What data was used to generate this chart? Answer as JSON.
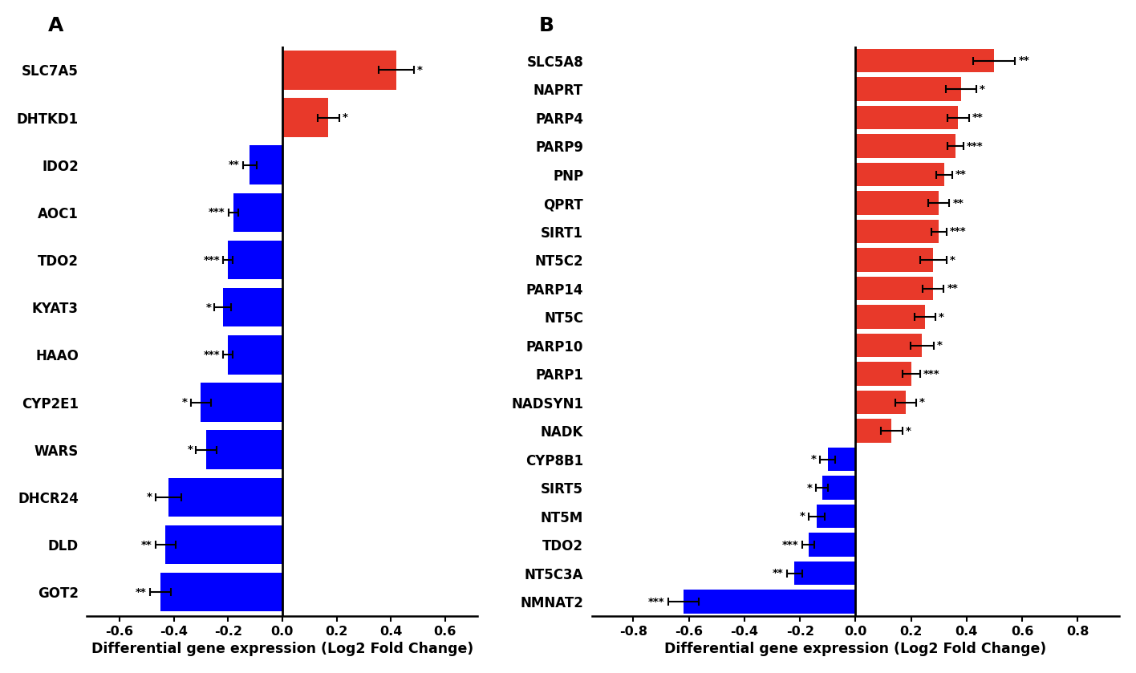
{
  "panel_A": {
    "genes": [
      "SLC7A5",
      "DHTKD1",
      "IDO2",
      "AOC1",
      "TDO2",
      "KYAT3",
      "HAAO",
      "CYP2E1",
      "WARS",
      "DHCR24",
      "DLD",
      "GOT2"
    ],
    "values": [
      0.42,
      0.17,
      -0.12,
      -0.18,
      -0.2,
      -0.22,
      -0.2,
      -0.3,
      -0.28,
      -0.42,
      -0.43,
      -0.45
    ],
    "errors": [
      0.065,
      0.04,
      0.025,
      0.018,
      0.018,
      0.03,
      0.018,
      0.038,
      0.038,
      0.048,
      0.038,
      0.038
    ],
    "colors": [
      "#e8392a",
      "#e8392a",
      "#0000ff",
      "#0000ff",
      "#0000ff",
      "#0000ff",
      "#0000ff",
      "#0000ff",
      "#0000ff",
      "#0000ff",
      "#0000ff",
      "#0000ff"
    ],
    "significance": [
      "*",
      "*",
      "**",
      "***",
      "***",
      "*",
      "***",
      "*",
      "*",
      "*",
      "**",
      "**"
    ],
    "xlim": [
      -0.72,
      0.72
    ],
    "xticks": [
      -0.6,
      -0.4,
      -0.2,
      0.0,
      0.2,
      0.4,
      0.6
    ],
    "xtick_labels": [
      "-0.6",
      "-0.4",
      "-0.2",
      "0.0",
      "0.2",
      "0.4",
      "0.6"
    ],
    "xlabel": "Differential gene expression (Log2 Fold Change)",
    "panel_label": "A"
  },
  "panel_B": {
    "genes": [
      "SLC5A8",
      "NAPRT",
      "PARP4",
      "PARP9",
      "PNP",
      "QPRT",
      "SIRT1",
      "NT5C2",
      "PARP14",
      "NT5C",
      "PARP10",
      "PARP1",
      "NADSYN1",
      "NADK",
      "CYP8B1",
      "SIRT5",
      "NT5M",
      "TDO2",
      "NT5C3A",
      "NMNAT2"
    ],
    "values": [
      0.5,
      0.38,
      0.37,
      0.36,
      0.32,
      0.3,
      0.3,
      0.28,
      0.28,
      0.25,
      0.24,
      0.2,
      0.18,
      0.13,
      -0.1,
      -0.12,
      -0.14,
      -0.17,
      -0.22,
      -0.62
    ],
    "errors": [
      0.075,
      0.055,
      0.038,
      0.028,
      0.028,
      0.038,
      0.028,
      0.048,
      0.038,
      0.038,
      0.042,
      0.032,
      0.038,
      0.038,
      0.028,
      0.022,
      0.028,
      0.022,
      0.028,
      0.055
    ],
    "colors": [
      "#e8392a",
      "#e8392a",
      "#e8392a",
      "#e8392a",
      "#e8392a",
      "#e8392a",
      "#e8392a",
      "#e8392a",
      "#e8392a",
      "#e8392a",
      "#e8392a",
      "#e8392a",
      "#e8392a",
      "#e8392a",
      "#0000ff",
      "#0000ff",
      "#0000ff",
      "#0000ff",
      "#0000ff",
      "#0000ff"
    ],
    "significance": [
      "**",
      "*",
      "**",
      "***",
      "**",
      "**",
      "***",
      "*",
      "**",
      "*",
      "*",
      "***",
      "*",
      "*",
      "*",
      "*",
      "*",
      "***",
      "**",
      "***"
    ],
    "xlim": [
      -0.95,
      0.95
    ],
    "xticks": [
      -0.8,
      -0.6,
      -0.4,
      -0.2,
      0.0,
      0.2,
      0.4,
      0.6,
      0.8
    ],
    "xtick_labels": [
      "-0.8",
      "-0.6",
      "-0.4",
      "-0.2",
      "0.0",
      "0.2",
      "0.4",
      "0.6",
      "0.8"
    ],
    "xlabel": "Differential gene expression (Log2 Fold Change)",
    "panel_label": "B"
  },
  "bar_height": 0.82,
  "sig_fontsize": 9.5,
  "gene_label_fontsize": 12,
  "tick_fontsize": 11.5,
  "axis_label_fontsize": 12.5,
  "panel_label_fontsize": 18
}
